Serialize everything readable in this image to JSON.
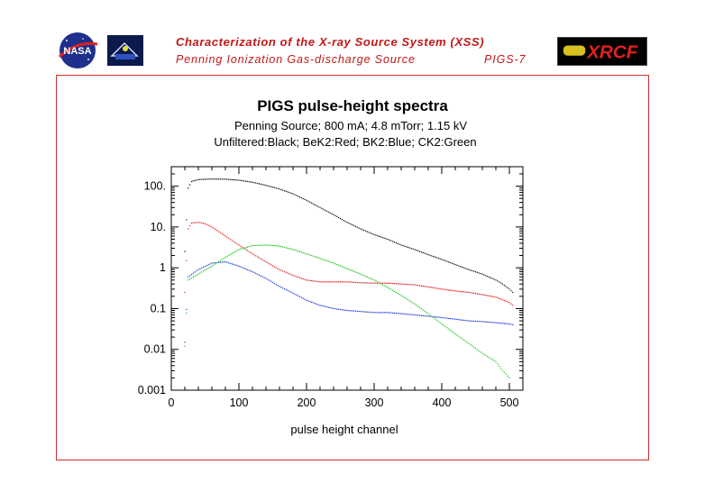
{
  "header": {
    "title": "Characterization of the X-ray Source System (XSS)",
    "subtitle": "Penning Ionization Gas-discharge Source",
    "code": "PIGS-7",
    "logo_left": "NASA",
    "logo_right": "XRCF"
  },
  "colors": {
    "header_text": "#c01818",
    "frame": "#d03030",
    "unfiltered": "#000000",
    "bek2": "#e01010",
    "bk2": "#1030e0",
    "ck2": "#10c010"
  },
  "chart_data": {
    "type": "scatter",
    "title": "PIGS pulse-height spectra",
    "subtitle_lines": [
      "Penning Source; 800 mA; 4.8 mTorr; 1.15 kV",
      "Unfiltered:Black; BeK2:Red; BK2:Blue; CK2:Green"
    ],
    "xlabel": "pulse height channel",
    "ylabel": "",
    "xlim": [
      0,
      520
    ],
    "ylim": [
      0.001,
      300
    ],
    "yscale": "log",
    "x_ticks": [
      0,
      100,
      200,
      300,
      400,
      500
    ],
    "y_ticks": [
      {
        "value": 0.001,
        "label": "0.001"
      },
      {
        "value": 0.01,
        "label": "0.01"
      },
      {
        "value": 0.1,
        "label": "0.1"
      },
      {
        "value": 1,
        "label": "1"
      },
      {
        "value": 10,
        "label": "10."
      },
      {
        "value": 100,
        "label": "100."
      }
    ],
    "grid": false,
    "series": [
      {
        "color": "#000000",
        "points": [
          [
            20,
            2.5
          ],
          [
            25,
            90
          ],
          [
            30,
            130
          ],
          [
            40,
            145
          ],
          [
            60,
            150
          ],
          [
            80,
            148
          ],
          [
            100,
            140
          ],
          [
            120,
            125
          ],
          [
            140,
            105
          ],
          [
            160,
            85
          ],
          [
            180,
            65
          ],
          [
            200,
            45
          ],
          [
            220,
            30
          ],
          [
            240,
            20
          ],
          [
            260,
            13
          ],
          [
            280,
            9
          ],
          [
            300,
            6.5
          ],
          [
            320,
            5
          ],
          [
            340,
            3.6
          ],
          [
            360,
            2.8
          ],
          [
            380,
            2.1
          ],
          [
            400,
            1.6
          ],
          [
            420,
            1.2
          ],
          [
            440,
            0.9
          ],
          [
            460,
            0.7
          ],
          [
            480,
            0.5
          ],
          [
            490,
            0.4
          ],
          [
            500,
            0.3
          ],
          [
            505,
            0.25
          ]
        ]
      },
      {
        "color": "#e01010",
        "points": [
          [
            20,
            0.25
          ],
          [
            25,
            9
          ],
          [
            30,
            12.5
          ],
          [
            40,
            13
          ],
          [
            50,
            12
          ],
          [
            60,
            10
          ],
          [
            80,
            6
          ],
          [
            100,
            3.6
          ],
          [
            120,
            2.2
          ],
          [
            140,
            1.4
          ],
          [
            160,
            0.9
          ],
          [
            180,
            0.65
          ],
          [
            200,
            0.5
          ],
          [
            220,
            0.45
          ],
          [
            240,
            0.45
          ],
          [
            260,
            0.45
          ],
          [
            280,
            0.43
          ],
          [
            300,
            0.42
          ],
          [
            320,
            0.42
          ],
          [
            340,
            0.4
          ],
          [
            360,
            0.38
          ],
          [
            380,
            0.34
          ],
          [
            400,
            0.3
          ],
          [
            420,
            0.27
          ],
          [
            440,
            0.25
          ],
          [
            460,
            0.22
          ],
          [
            480,
            0.19
          ],
          [
            500,
            0.14
          ],
          [
            505,
            0.12
          ]
        ]
      },
      {
        "color": "#1030e0",
        "points": [
          [
            20,
            0.015
          ],
          [
            25,
            0.6
          ],
          [
            40,
            0.9
          ],
          [
            60,
            1.3
          ],
          [
            80,
            1.4
          ],
          [
            100,
            1.1
          ],
          [
            120,
            0.8
          ],
          [
            140,
            0.55
          ],
          [
            160,
            0.35
          ],
          [
            180,
            0.24
          ],
          [
            200,
            0.16
          ],
          [
            220,
            0.12
          ],
          [
            240,
            0.1
          ],
          [
            260,
            0.09
          ],
          [
            280,
            0.085
          ],
          [
            300,
            0.08
          ],
          [
            320,
            0.08
          ],
          [
            340,
            0.075
          ],
          [
            360,
            0.07
          ],
          [
            380,
            0.065
          ],
          [
            400,
            0.06
          ],
          [
            420,
            0.055
          ],
          [
            440,
            0.05
          ],
          [
            460,
            0.048
          ],
          [
            480,
            0.045
          ],
          [
            500,
            0.042
          ],
          [
            505,
            0.04
          ]
        ]
      },
      {
        "color": "#10c010",
        "points": [
          [
            20,
            0.012
          ],
          [
            25,
            0.5
          ],
          [
            40,
            0.7
          ],
          [
            60,
            1.1
          ],
          [
            80,
            1.8
          ],
          [
            100,
            2.8
          ],
          [
            120,
            3.5
          ],
          [
            140,
            3.6
          ],
          [
            160,
            3.4
          ],
          [
            180,
            2.8
          ],
          [
            200,
            2.2
          ],
          [
            220,
            1.7
          ],
          [
            240,
            1.3
          ],
          [
            260,
            0.95
          ],
          [
            280,
            0.7
          ],
          [
            300,
            0.5
          ],
          [
            320,
            0.33
          ],
          [
            340,
            0.21
          ],
          [
            360,
            0.13
          ],
          [
            380,
            0.075
          ],
          [
            400,
            0.042
          ],
          [
            420,
            0.024
          ],
          [
            440,
            0.014
          ],
          [
            460,
            0.008
          ],
          [
            480,
            0.005
          ],
          [
            490,
            0.003
          ],
          [
            500,
            0.002
          ]
        ]
      }
    ]
  }
}
